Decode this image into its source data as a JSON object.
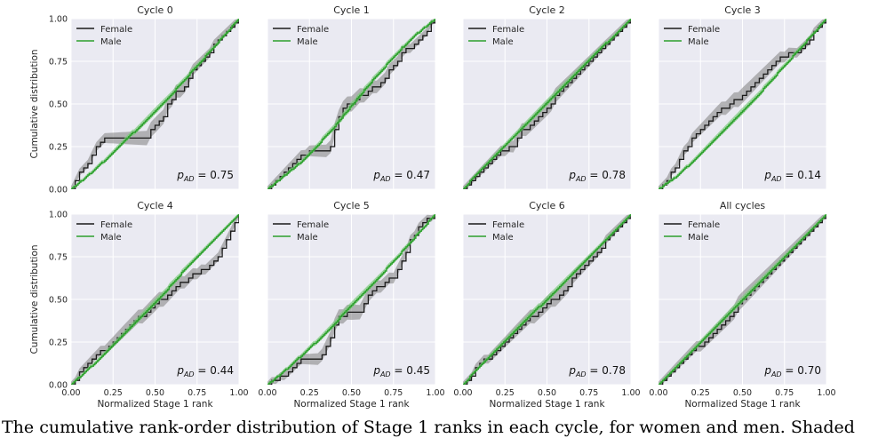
{
  "figure": {
    "ylabel": "Cumulative distribution",
    "xlabel": "Normalized Stage 1 rank",
    "legend": [
      "Female",
      "Male"
    ],
    "colors": {
      "female": "#1a1a1a",
      "male": "#2ca02c",
      "female_band": "#808080",
      "male_band": "#7fcc7f",
      "panel_bg": "#eaeaf2",
      "grid": "#ffffff"
    },
    "xticks": [
      "0.00",
      "0.25",
      "0.50",
      "0.75",
      "1.00"
    ],
    "yticks": [
      "0.00",
      "0.25",
      "0.50",
      "0.75",
      "1.00"
    ],
    "caption": "The cumulative rank-order distribution of Stage 1 ranks in each cycle, for women and men. Shaded"
  },
  "chart_data": [
    {
      "type": "line",
      "title": "Cycle 0",
      "xlim": [
        0,
        1
      ],
      "ylim": [
        0,
        1
      ],
      "p_value_label": "= 0.75",
      "series": [
        {
          "name": "Female",
          "x": [
            0,
            0.03,
            0.05,
            0.08,
            0.12,
            0.15,
            0.2,
            0.3,
            0.45,
            0.5,
            0.55,
            0.58,
            0.62,
            0.68,
            0.72,
            0.78,
            0.82,
            0.87,
            0.9,
            0.95,
            1.0
          ],
          "y": [
            0,
            0.05,
            0.09,
            0.13,
            0.19,
            0.24,
            0.31,
            0.31,
            0.31,
            0.37,
            0.43,
            0.5,
            0.56,
            0.6,
            0.7,
            0.75,
            0.8,
            0.87,
            0.91,
            0.95,
            1.0
          ]
        },
        {
          "name": "Male",
          "x": [
            0,
            0.1,
            0.2,
            0.3,
            0.4,
            0.5,
            0.6,
            0.7,
            0.8,
            0.9,
            1.0
          ],
          "y": [
            0,
            0.08,
            0.17,
            0.27,
            0.36,
            0.46,
            0.56,
            0.67,
            0.78,
            0.89,
            1.0
          ]
        }
      ]
    },
    {
      "type": "line",
      "title": "Cycle 1",
      "xlim": [
        0,
        1
      ],
      "ylim": [
        0,
        1
      ],
      "p_value_label": "= 0.47",
      "series": [
        {
          "name": "Female",
          "x": [
            0,
            0.05,
            0.1,
            0.15,
            0.2,
            0.28,
            0.37,
            0.42,
            0.45,
            0.52,
            0.6,
            0.68,
            0.75,
            0.8,
            0.87,
            0.93,
            1.0
          ],
          "y": [
            0,
            0.05,
            0.1,
            0.15,
            0.2,
            0.23,
            0.23,
            0.42,
            0.48,
            0.52,
            0.58,
            0.63,
            0.72,
            0.8,
            0.84,
            0.91,
            1.0
          ]
        },
        {
          "name": "Male",
          "x": [
            0,
            0.1,
            0.2,
            0.3,
            0.4,
            0.5,
            0.6,
            0.7,
            0.8,
            0.9,
            1.0
          ],
          "y": [
            0,
            0.08,
            0.16,
            0.26,
            0.37,
            0.49,
            0.61,
            0.72,
            0.83,
            0.92,
            1.0
          ]
        }
      ]
    },
    {
      "type": "line",
      "title": "Cycle 2",
      "xlim": [
        0,
        1
      ],
      "ylim": [
        0,
        1
      ],
      "p_value_label": "= 0.78",
      "series": [
        {
          "name": "Female",
          "x": [
            0,
            0.05,
            0.1,
            0.2,
            0.3,
            0.35,
            0.42,
            0.5,
            0.6,
            0.7,
            0.8,
            0.9,
            1.0
          ],
          "y": [
            0,
            0.06,
            0.11,
            0.2,
            0.26,
            0.34,
            0.4,
            0.48,
            0.6,
            0.7,
            0.8,
            0.9,
            1.0
          ]
        },
        {
          "name": "Male",
          "x": [
            0,
            0.1,
            0.2,
            0.3,
            0.4,
            0.5,
            0.6,
            0.7,
            0.8,
            0.9,
            1.0
          ],
          "y": [
            0,
            0.11,
            0.21,
            0.31,
            0.41,
            0.51,
            0.61,
            0.71,
            0.81,
            0.9,
            1.0
          ]
        }
      ]
    },
    {
      "type": "line",
      "title": "Cycle 3",
      "xlim": [
        0,
        1
      ],
      "ylim": [
        0,
        1
      ],
      "p_value_label": "= 0.14",
      "series": [
        {
          "name": "Female",
          "x": [
            0,
            0.05,
            0.1,
            0.15,
            0.2,
            0.25,
            0.3,
            0.4,
            0.5,
            0.6,
            0.65,
            0.7,
            0.75,
            0.8,
            0.87,
            0.92,
            1.0
          ],
          "y": [
            0,
            0.05,
            0.13,
            0.22,
            0.3,
            0.34,
            0.41,
            0.48,
            0.55,
            0.65,
            0.71,
            0.75,
            0.78,
            0.8,
            0.83,
            0.91,
            1.0
          ]
        },
        {
          "name": "Male",
          "x": [
            0,
            0.1,
            0.2,
            0.3,
            0.4,
            0.5,
            0.6,
            0.7,
            0.8,
            0.9,
            1.0
          ],
          "y": [
            0,
            0.07,
            0.16,
            0.26,
            0.36,
            0.46,
            0.56,
            0.67,
            0.78,
            0.89,
            1.0
          ]
        }
      ]
    },
    {
      "type": "line",
      "title": "Cycle 4",
      "xlim": [
        0,
        1
      ],
      "ylim": [
        0,
        1
      ],
      "p_value_label": "= 0.44",
      "series": [
        {
          "name": "Female",
          "x": [
            0,
            0.05,
            0.1,
            0.2,
            0.3,
            0.4,
            0.5,
            0.6,
            0.7,
            0.8,
            0.85,
            0.9,
            0.95,
            1.0
          ],
          "y": [
            0,
            0.07,
            0.13,
            0.21,
            0.3,
            0.39,
            0.47,
            0.55,
            0.63,
            0.68,
            0.72,
            0.8,
            0.9,
            1.0
          ]
        },
        {
          "name": "Male",
          "x": [
            0,
            0.1,
            0.2,
            0.3,
            0.4,
            0.5,
            0.6,
            0.7,
            0.8,
            0.9,
            1.0
          ],
          "y": [
            0,
            0.09,
            0.18,
            0.28,
            0.38,
            0.48,
            0.59,
            0.7,
            0.8,
            0.9,
            1.0
          ]
        }
      ]
    },
    {
      "type": "line",
      "title": "Cycle 5",
      "xlim": [
        0,
        1
      ],
      "ylim": [
        0,
        1
      ],
      "p_value_label": "= 0.45",
      "series": [
        {
          "name": "Female",
          "x": [
            0,
            0.1,
            0.2,
            0.3,
            0.35,
            0.42,
            0.5,
            0.55,
            0.6,
            0.7,
            0.75,
            0.8,
            0.85,
            0.9,
            0.95,
            1.0
          ],
          "y": [
            0,
            0.05,
            0.14,
            0.15,
            0.22,
            0.4,
            0.43,
            0.43,
            0.53,
            0.6,
            0.63,
            0.72,
            0.85,
            0.92,
            0.97,
            1.0
          ]
        },
        {
          "name": "Male",
          "x": [
            0,
            0.1,
            0.2,
            0.3,
            0.4,
            0.5,
            0.6,
            0.7,
            0.8,
            0.9,
            1.0
          ],
          "y": [
            0,
            0.08,
            0.17,
            0.26,
            0.36,
            0.47,
            0.57,
            0.67,
            0.78,
            0.89,
            1.0
          ]
        }
      ]
    },
    {
      "type": "line",
      "title": "Cycle 6",
      "xlim": [
        0,
        1
      ],
      "ylim": [
        0,
        1
      ],
      "p_value_label": "= 0.78",
      "series": [
        {
          "name": "Female",
          "x": [
            0,
            0.05,
            0.1,
            0.2,
            0.3,
            0.4,
            0.5,
            0.6,
            0.7,
            0.8,
            0.9,
            1.0
          ],
          "y": [
            0,
            0.06,
            0.12,
            0.2,
            0.3,
            0.39,
            0.47,
            0.55,
            0.68,
            0.78,
            0.9,
            1.0
          ]
        },
        {
          "name": "Male",
          "x": [
            0,
            0.1,
            0.2,
            0.3,
            0.4,
            0.5,
            0.6,
            0.7,
            0.8,
            0.9,
            1.0
          ],
          "y": [
            0,
            0.11,
            0.21,
            0.31,
            0.41,
            0.5,
            0.6,
            0.7,
            0.8,
            0.9,
            1.0
          ]
        }
      ]
    },
    {
      "type": "line",
      "title": "All cycles",
      "xlim": [
        0,
        1
      ],
      "ylim": [
        0,
        1
      ],
      "p_value_label": "= 0.70",
      "series": [
        {
          "name": "Female",
          "x": [
            0,
            0.1,
            0.2,
            0.3,
            0.4,
            0.5,
            0.6,
            0.7,
            0.8,
            0.9,
            1.0
          ],
          "y": [
            0,
            0.09,
            0.19,
            0.28,
            0.38,
            0.49,
            0.59,
            0.69,
            0.8,
            0.9,
            1.0
          ]
        },
        {
          "name": "Male",
          "x": [
            0,
            0.1,
            0.2,
            0.3,
            0.4,
            0.5,
            0.6,
            0.7,
            0.8,
            0.9,
            1.0
          ],
          "y": [
            0,
            0.1,
            0.2,
            0.3,
            0.4,
            0.5,
            0.6,
            0.7,
            0.8,
            0.9,
            1.0
          ]
        }
      ]
    }
  ]
}
